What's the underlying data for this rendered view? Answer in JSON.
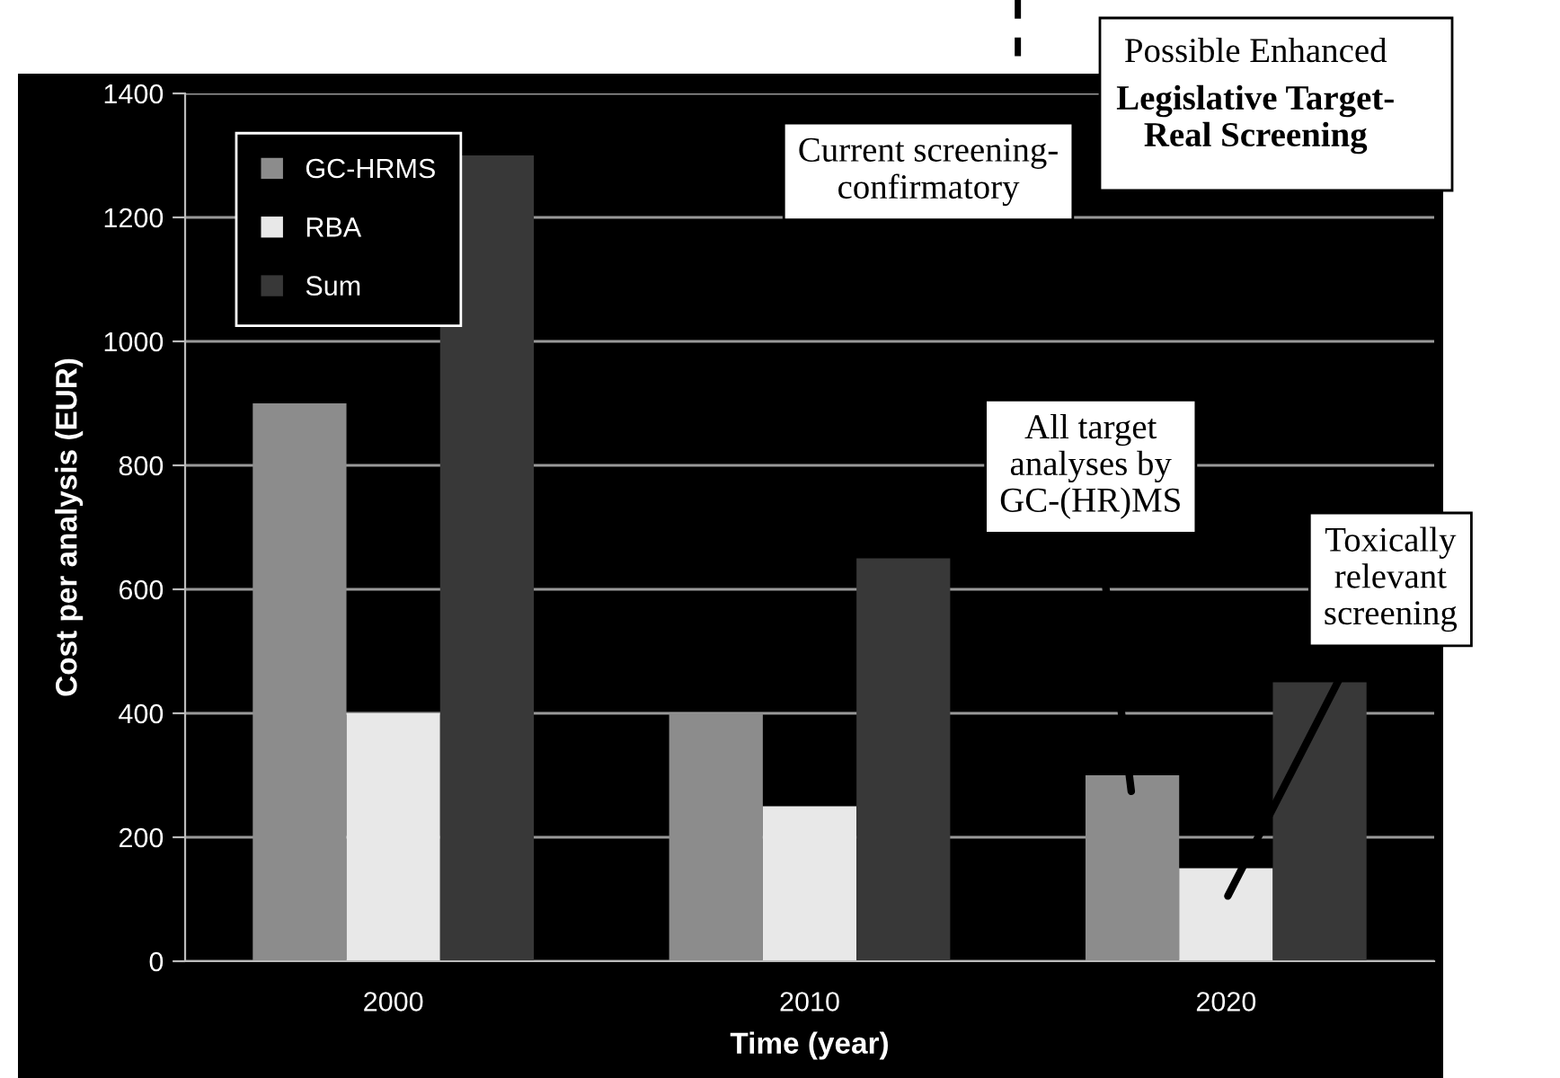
{
  "chart_data": {
    "type": "bar",
    "xlabel": "Time (year)",
    "ylabel": "Cost per analysis (EUR)",
    "categories": [
      "2000",
      "2010",
      "2020"
    ],
    "series": [
      {
        "name": "GC-HRMS",
        "color": "#8c8c8c",
        "values": [
          900,
          400,
          300
        ]
      },
      {
        "name": "RBA",
        "color": "#e8e8e8",
        "values": [
          400,
          250,
          150
        ]
      },
      {
        "name": "Sum",
        "color": "#383838",
        "values": [
          1300,
          650,
          450
        ]
      }
    ],
    "ylim": [
      0,
      1400
    ],
    "yticks": [
      0,
      200,
      400,
      600,
      800,
      1000,
      1200,
      1400
    ],
    "grid": "y",
    "legend": "top left",
    "annotations": [
      "Current screening-\nconfirmatory",
      "Possible Enhanced",
      "Legislative Target-\nReal Screening",
      "All target\nanalyses by\nGC-(HR)MS",
      "Toxically\nrelevant\nscreening"
    ]
  }
}
